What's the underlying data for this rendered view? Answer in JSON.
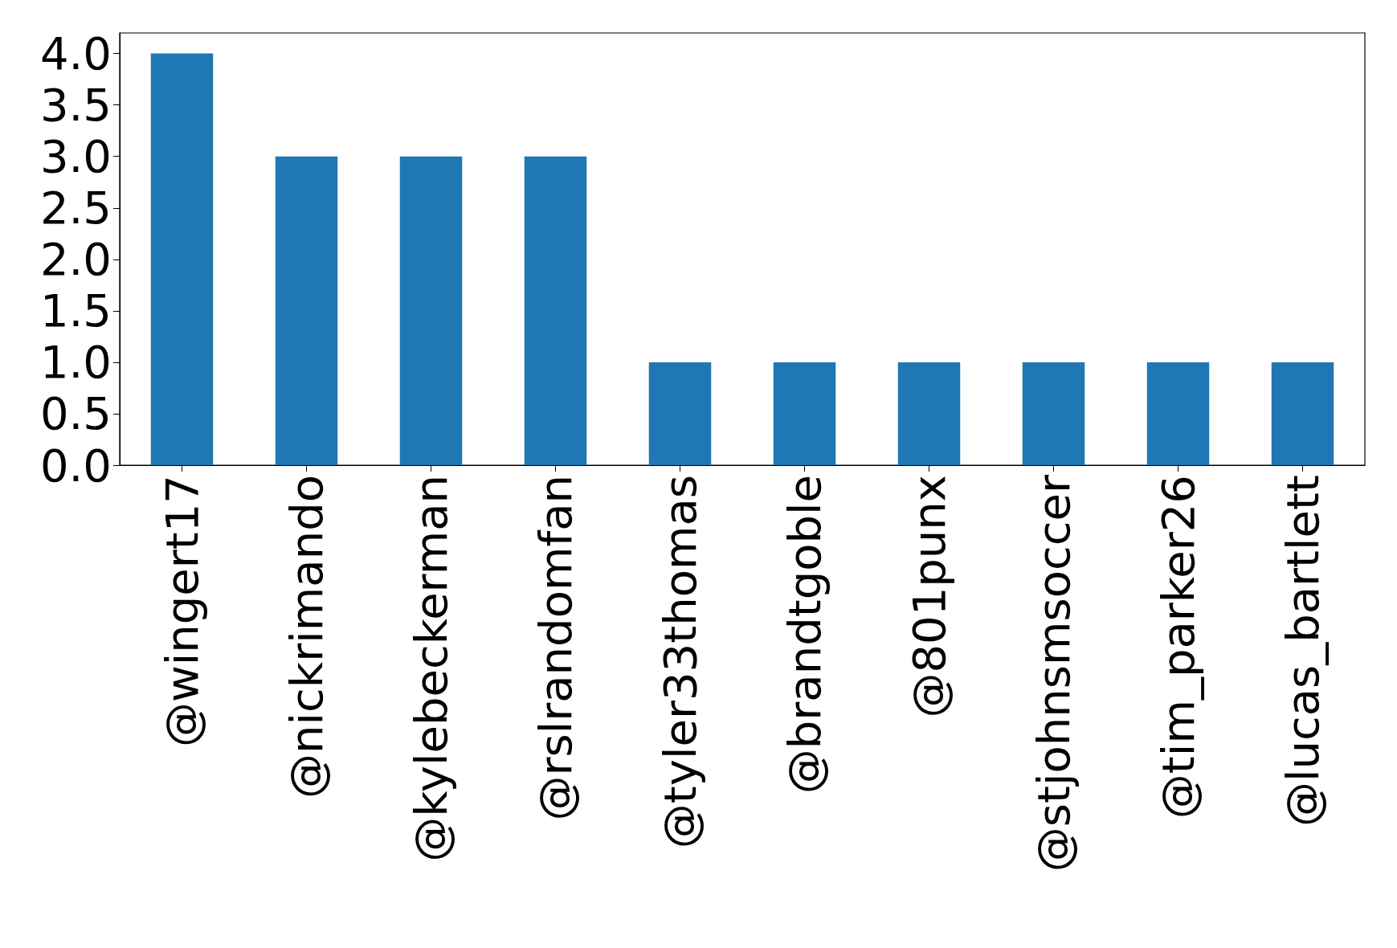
{
  "chart_data": {
    "type": "bar",
    "categories": [
      "@wingert17",
      "@nickrimando",
      "@kylebeckerman",
      "@rslrandomfan",
      "@tyler33thomas",
      "@brandtgoble",
      "@801punx",
      "@stjohnsmsoccer",
      "@tim_parker26",
      "@lucas_bartlett"
    ],
    "values": [
      4,
      3,
      3,
      3,
      1,
      1,
      1,
      1,
      1,
      1
    ],
    "color": "#1f77b4",
    "ylim": [
      0,
      4.2
    ],
    "yticks": [
      {
        "value": 0,
        "label": "0.0"
      },
      {
        "value": 0.5,
        "label": "0.5"
      },
      {
        "value": 1,
        "label": "1.0"
      },
      {
        "value": 1.5,
        "label": "1.5"
      },
      {
        "value": 2,
        "label": "2.0"
      },
      {
        "value": 2.5,
        "label": "2.5"
      },
      {
        "value": 3,
        "label": "3.0"
      },
      {
        "value": 3.5,
        "label": "3.5"
      },
      {
        "value": 4,
        "label": "4.0"
      }
    ],
    "grid": false
  }
}
